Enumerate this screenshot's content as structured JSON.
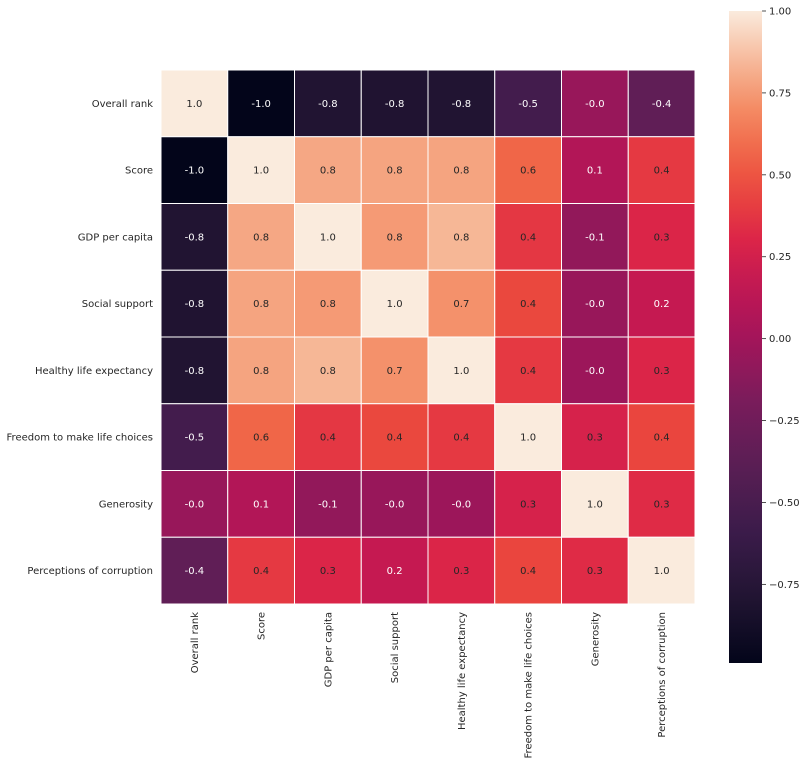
{
  "chart_data": {
    "type": "heatmap",
    "title": "",
    "xlabel": "",
    "ylabel": "",
    "labels": [
      "Overall rank",
      "Score",
      "GDP per capita",
      "Social support",
      "Healthy life expectancy",
      "Freedom to make life choices",
      "Generosity",
      "Perceptions of corruption"
    ],
    "values": [
      [
        1.0,
        -0.99,
        -0.79,
        -0.8,
        -0.79,
        -0.54,
        -0.05,
        -0.35
      ],
      [
        -0.99,
        1.0,
        0.79,
        0.78,
        0.78,
        0.57,
        0.08,
        0.39
      ],
      [
        -0.79,
        0.79,
        1.0,
        0.75,
        0.84,
        0.38,
        -0.08,
        0.3
      ],
      [
        -0.8,
        0.78,
        0.75,
        1.0,
        0.72,
        0.45,
        -0.05,
        0.18
      ],
      [
        -0.79,
        0.78,
        0.84,
        0.72,
        1.0,
        0.39,
        -0.03,
        0.3
      ],
      [
        -0.54,
        0.57,
        0.38,
        0.45,
        0.39,
        1.0,
        0.27,
        0.44
      ],
      [
        -0.05,
        0.08,
        -0.08,
        -0.05,
        -0.03,
        0.27,
        1.0,
        0.33
      ],
      [
        -0.35,
        0.39,
        0.3,
        0.18,
        0.3,
        0.44,
        0.33,
        1.0
      ]
    ],
    "annotations": [
      [
        "1.0",
        "-1.0",
        "-0.8",
        "-0.8",
        "-0.8",
        "-0.5",
        "-0.0",
        "-0.4"
      ],
      [
        "-1.0",
        "1.0",
        "0.8",
        "0.8",
        "0.8",
        "0.6",
        "0.1",
        "0.4"
      ],
      [
        "-0.8",
        "0.8",
        "1.0",
        "0.8",
        "0.8",
        "0.4",
        "-0.1",
        "0.3"
      ],
      [
        "-0.8",
        "0.8",
        "0.8",
        "1.0",
        "0.7",
        "0.4",
        "-0.0",
        "0.2"
      ],
      [
        "-0.8",
        "0.8",
        "0.8",
        "0.7",
        "1.0",
        "0.4",
        "-0.0",
        "0.3"
      ],
      [
        "-0.5",
        "0.6",
        "0.4",
        "0.4",
        "0.4",
        "1.0",
        "0.3",
        "0.4"
      ],
      [
        "-0.0",
        "0.1",
        "-0.1",
        "-0.0",
        "-0.0",
        "0.3",
        "1.0",
        "0.3"
      ],
      [
        "-0.4",
        "0.4",
        "0.3",
        "0.2",
        "0.3",
        "0.4",
        "0.3",
        "1.0"
      ]
    ],
    "colormap": "rocket",
    "vmin": -0.99,
    "vmax": 1.0,
    "colorbar": {
      "ticks": [
        1.0,
        0.75,
        0.5,
        0.25,
        0.0,
        -0.25,
        -0.5,
        -0.75
      ],
      "tick_labels": [
        "1.00",
        "0.75",
        "0.50",
        "0.25",
        "0.00",
        "−0.25",
        "−0.50",
        "−0.75"
      ],
      "placement": "right"
    },
    "grid": false,
    "cell_separator_color": "#ffffff"
  }
}
